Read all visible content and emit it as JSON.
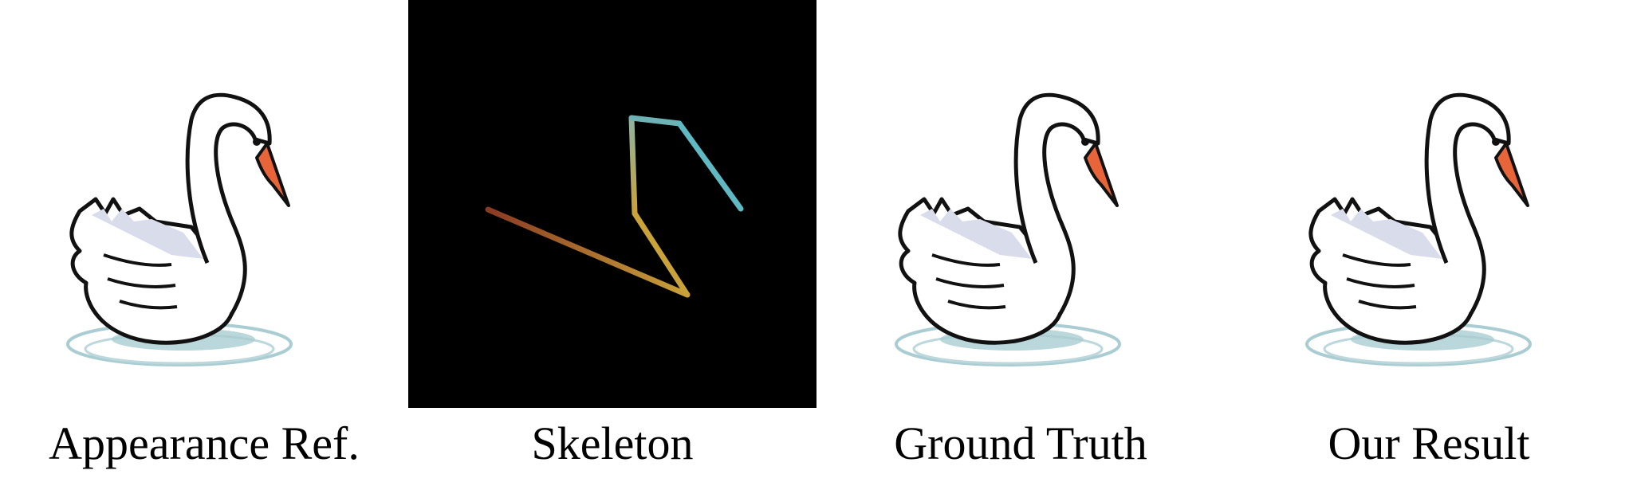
{
  "figure": {
    "panels": [
      {
        "id": "appearance",
        "caption": "Appearance Ref.",
        "content": "swan-illustration"
      },
      {
        "id": "skeleton",
        "caption": "Skeleton",
        "content": "pose-skeleton"
      },
      {
        "id": "ground-truth",
        "caption": "Ground Truth",
        "content": "swan-illustration"
      },
      {
        "id": "result",
        "caption": "Our Result",
        "content": "swan-illustration"
      }
    ],
    "colors": {
      "background": "#ffffff",
      "skeleton_background": "#000000",
      "swan_outline": "#111111",
      "swan_body": "#ffffff",
      "wing_shadow": "#d9dcea",
      "beak": "#e8653a",
      "water": "#a9cdd2",
      "bone_tail": "#8a3a22",
      "bone_mid": "#c9a23a",
      "bone_neck": "#8fb4a0",
      "bone_head": "#5fb8c2"
    }
  }
}
